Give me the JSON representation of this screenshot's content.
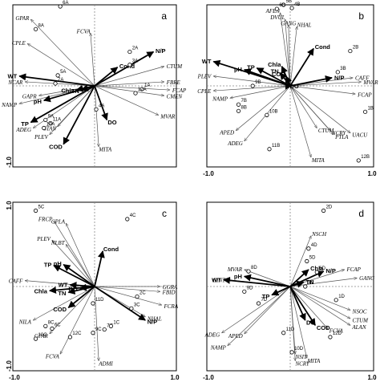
{
  "chart_data": [
    {
      "type": "scatter",
      "panel_label": "a",
      "xlim": [
        -1.0,
        1.0
      ],
      "ylim": [
        -1.0,
        1.0
      ],
      "show_xticks": false,
      "show_yticks": true,
      "ytick_top": "",
      "ytick_bottom": "-1.0",
      "xtick_left": "",
      "xtick_right": "",
      "environment": [
        {
          "name": "N/P",
          "x": 0.72,
          "y": 0.42
        },
        {
          "name": "Cond",
          "x": 0.28,
          "y": 0.23
        },
        {
          "name": "WT",
          "x": -0.92,
          "y": 0.12
        },
        {
          "name": "pH",
          "x": -0.62,
          "y": -0.18
        },
        {
          "name": "TP",
          "x": -0.78,
          "y": -0.45
        },
        {
          "name": "COD",
          "x": -0.38,
          "y": -0.72
        },
        {
          "name": "Chla",
          "x": -0.22,
          "y": -0.05
        },
        {
          "name": "TN",
          "x": -0.16,
          "y": -0.05
        },
        {
          "name": "DO",
          "x": 0.15,
          "y": -0.42
        }
      ],
      "species": [
        {
          "name": "GPAR",
          "x": -0.78,
          "y": 0.82
        },
        {
          "name": "FCVA",
          "x": -0.05,
          "y": 0.65
        },
        {
          "name": "CPLE",
          "x": -0.82,
          "y": 0.52
        },
        {
          "name": "CTUM",
          "x": 0.85,
          "y": 0.24
        },
        {
          "name": "NCAR",
          "x": -0.85,
          "y": 0.05
        },
        {
          "name": "FBRE",
          "x": 0.85,
          "y": 0.05
        },
        {
          "name": "FCAP",
          "x": 0.92,
          "y": -0.05
        },
        {
          "name": "CMEN",
          "x": 0.85,
          "y": -0.12
        },
        {
          "name": "NAMP",
          "x": -0.92,
          "y": -0.22
        },
        {
          "name": "GAPR",
          "x": -0.68,
          "y": -0.12
        },
        {
          "name": "MVAR",
          "x": 0.78,
          "y": -0.36
        },
        {
          "name": "ADEG",
          "x": -0.75,
          "y": -0.52
        },
        {
          "name": "PLEV",
          "x": -0.55,
          "y": -0.6
        },
        {
          "name": "STAN",
          "x": -0.45,
          "y": -0.5
        },
        {
          "name": "MITA",
          "x": 0.05,
          "y": -0.75
        }
      ],
      "sites": [
        {
          "name": "6A",
          "x": -0.42,
          "y": 0.98
        },
        {
          "name": "8A",
          "x": -0.72,
          "y": 0.7
        },
        {
          "name": "2A",
          "x": 0.43,
          "y": 0.42
        },
        {
          "name": "3A",
          "x": 0.43,
          "y": 0.26
        },
        {
          "name": "5A",
          "x": -0.45,
          "y": 0.13
        },
        {
          "name": "7A",
          "x": -0.48,
          "y": 0.03
        },
        {
          "name": "1A",
          "x": 0.58,
          "y": -0.04
        },
        {
          "name": "12A",
          "x": 0.5,
          "y": -0.09
        },
        {
          "name": "4A",
          "x": 0.02,
          "y": -0.29
        },
        {
          "name": "9A",
          "x": -0.6,
          "y": -0.42
        },
        {
          "name": "11A",
          "x": -0.54,
          "y": -0.46
        },
        {
          "name": "10A",
          "x": -0.62,
          "y": -0.52
        }
      ]
    },
    {
      "type": "scatter",
      "panel_label": "b",
      "xlim": [
        -1.0,
        1.0
      ],
      "ylim": [
        -1.0,
        1.0
      ],
      "show_xticks": true,
      "show_yticks": false,
      "ytick_top": "",
      "ytick_bottom": "",
      "xtick_left": "-1.0",
      "xtick_right": "1.0",
      "environment": [
        {
          "name": "Cond",
          "x": 0.28,
          "y": 0.46
        },
        {
          "name": "WT",
          "x": -0.92,
          "y": 0.3
        },
        {
          "name": "pH",
          "x": -0.55,
          "y": 0.2
        },
        {
          "name": "TP",
          "x": -0.4,
          "y": 0.22
        },
        {
          "name": "Chla",
          "x": -0.1,
          "y": 0.24
        },
        {
          "name": "TN",
          "x": -0.12,
          "y": 0.16
        },
        {
          "name": "COD",
          "x": -0.05,
          "y": 0.12
        },
        {
          "name": "N/P",
          "x": 0.5,
          "y": 0.1
        },
        {
          "name": "DO",
          "x": 0.02,
          "y": 0.0
        }
      ],
      "species": [
        {
          "name": "AFEN",
          "x": -0.12,
          "y": 0.9
        },
        {
          "name": "DVUL",
          "x": -0.06,
          "y": 0.82
        },
        {
          "name": "GANG",
          "x": -0.02,
          "y": 0.75
        },
        {
          "name": "NHAL",
          "x": 0.08,
          "y": 0.73
        },
        {
          "name": "PLEV",
          "x": -0.92,
          "y": 0.12
        },
        {
          "name": "CPLE",
          "x": -0.92,
          "y": -0.06
        },
        {
          "name": "CAFF",
          "x": 0.75,
          "y": 0.1
        },
        {
          "name": "MVAR",
          "x": 0.85,
          "y": 0.05
        },
        {
          "name": "FCAP",
          "x": 0.78,
          "y": -0.1
        },
        {
          "name": "NAMP",
          "x": -0.72,
          "y": -0.15
        },
        {
          "name": "APED",
          "x": -0.65,
          "y": -0.55
        },
        {
          "name": "ADEG",
          "x": -0.55,
          "y": -0.68
        },
        {
          "name": "CTUM",
          "x": 0.32,
          "y": -0.52
        },
        {
          "name": "NCRY",
          "x": 0.48,
          "y": -0.55
        },
        {
          "name": "PTLA",
          "x": 0.52,
          "y": -0.6
        },
        {
          "name": "UACU",
          "x": 0.72,
          "y": -0.58
        },
        {
          "name": "MITA",
          "x": 0.25,
          "y": -0.88
        }
      ],
      "sites": [
        {
          "name": "5B",
          "x": -0.08,
          "y": 1.0
        },
        {
          "name": "6B",
          "x": -0.16,
          "y": 0.95
        },
        {
          "name": "4B",
          "x": 0.02,
          "y": 0.96
        },
        {
          "name": "2B",
          "x": 0.72,
          "y": 0.43
        },
        {
          "name": "3B",
          "x": 0.57,
          "y": 0.17
        },
        {
          "name": "9B",
          "x": -0.45,
          "y": 0.0
        },
        {
          "name": "7B",
          "x": -0.62,
          "y": -0.23
        },
        {
          "name": "8B",
          "x": -0.62,
          "y": -0.31
        },
        {
          "name": "10B",
          "x": -0.28,
          "y": -0.36
        },
        {
          "name": "1B",
          "x": 0.9,
          "y": -0.32
        },
        {
          "name": "11B",
          "x": -0.25,
          "y": -0.78
        },
        {
          "name": "12B",
          "x": 0.82,
          "y": -0.92
        }
      ]
    },
    {
      "type": "scatter",
      "panel_label": "c",
      "xlim": [
        -1.0,
        1.0
      ],
      "ylim": [
        -1.0,
        1.0
      ],
      "show_xticks": true,
      "show_yticks": true,
      "ytick_top": "1.0",
      "ytick_bottom": "-1.0",
      "xtick_left": "-1.0",
      "xtick_right": "1.0",
      "environment": [
        {
          "name": "pH",
          "x": -0.38,
          "y": 0.26
        },
        {
          "name": "TP",
          "x": -0.5,
          "y": 0.25
        },
        {
          "name": "WT",
          "x": -0.3,
          "y": 0.02
        },
        {
          "name": "Chla",
          "x": -0.55,
          "y": -0.05
        },
        {
          "name": "TN",
          "x": -0.32,
          "y": -0.07
        },
        {
          "name": "DO",
          "x": -0.18,
          "y": -0.02
        },
        {
          "name": "COD",
          "x": -0.32,
          "y": -0.25
        },
        {
          "name": "Cond",
          "x": 0.1,
          "y": 0.42
        },
        {
          "name": "N/P",
          "x": 0.62,
          "y": -0.4
        }
      ],
      "species": [
        {
          "name": "FRCP",
          "x": -0.5,
          "y": 0.78
        },
        {
          "name": "CPLA",
          "x": -0.35,
          "y": 0.75
        },
        {
          "name": "PLEV",
          "x": -0.52,
          "y": 0.55
        },
        {
          "name": "NLBT",
          "x": -0.35,
          "y": 0.5
        },
        {
          "name": "CAFF",
          "x": -0.85,
          "y": 0.07
        },
        {
          "name": "GGRA",
          "x": 0.8,
          "y": 0.0
        },
        {
          "name": "FBID",
          "x": 0.8,
          "y": -0.06
        },
        {
          "name": "FCRA",
          "x": 0.82,
          "y": -0.22
        },
        {
          "name": "NHAL",
          "x": 0.62,
          "y": -0.36
        },
        {
          "name": "NILA",
          "x": -0.75,
          "y": -0.4
        },
        {
          "name": "GPAR",
          "x": -0.55,
          "y": -0.56
        },
        {
          "name": "FCVA",
          "x": -0.42,
          "y": -0.8
        },
        {
          "name": "ADMI",
          "x": 0.05,
          "y": -0.88
        }
      ],
      "sites": [
        {
          "name": "5C",
          "x": -0.72,
          "y": 0.9
        },
        {
          "name": "4C",
          "x": 0.4,
          "y": 0.8
        },
        {
          "name": "2C",
          "x": 0.52,
          "y": -0.12
        },
        {
          "name": "3C",
          "x": 0.45,
          "y": -0.26
        },
        {
          "name": "11D",
          "x": -0.02,
          "y": -0.2
        },
        {
          "name": "8C",
          "x": -0.6,
          "y": -0.47
        },
        {
          "name": "6C",
          "x": -0.52,
          "y": -0.5
        },
        {
          "name": "7C",
          "x": 0.12,
          "y": -0.51
        },
        {
          "name": "9C",
          "x": -0.02,
          "y": -0.55
        },
        {
          "name": "1C",
          "x": 0.2,
          "y": -0.47
        },
        {
          "name": "10C",
          "x": -0.72,
          "y": -0.62
        },
        {
          "name": "12C",
          "x": -0.3,
          "y": -0.6
        }
      ]
    },
    {
      "type": "scatter",
      "panel_label": "d",
      "xlim": [
        -1.0,
        1.0
      ],
      "ylim": [
        -1.0,
        1.0
      ],
      "show_xticks": true,
      "show_yticks": false,
      "ytick_top": "",
      "ytick_bottom": "",
      "xtick_left": "-1.0",
      "xtick_right": "1.0",
      "environment": [
        {
          "name": "N/P",
          "x": 0.4,
          "y": 0.18
        },
        {
          "name": "Chla",
          "x": 0.22,
          "y": 0.2
        },
        {
          "name": "TN",
          "x": 0.16,
          "y": 0.05
        },
        {
          "name": "pH",
          "x": -0.55,
          "y": 0.12
        },
        {
          "name": "WT",
          "x": -0.8,
          "y": 0.08
        },
        {
          "name": "TP",
          "x": -0.22,
          "y": -0.1
        },
        {
          "name": "DO",
          "x": 0.18,
          "y": -0.4
        },
        {
          "name": "COD",
          "x": 0.3,
          "y": -0.46
        }
      ],
      "species": [
        {
          "name": "NSCH",
          "x": 0.25,
          "y": 0.6
        },
        {
          "name": "FCAP",
          "x": 0.65,
          "y": 0.2
        },
        {
          "name": "GANG",
          "x": 0.8,
          "y": 0.1
        },
        {
          "name": "MVAR",
          "x": -0.55,
          "y": 0.2
        },
        {
          "name": "GINT",
          "x": -0.75,
          "y": 0.08
        },
        {
          "name": "NSOC",
          "x": 0.72,
          "y": -0.28
        },
        {
          "name": "CTUM",
          "x": 0.72,
          "y": -0.38
        },
        {
          "name": "ALAN",
          "x": 0.72,
          "y": -0.46
        },
        {
          "name": "FCVA",
          "x": 0.45,
          "y": -0.5
        },
        {
          "name": "ADEG",
          "x": -0.82,
          "y": -0.55
        },
        {
          "name": "APED",
          "x": -0.55,
          "y": -0.56
        },
        {
          "name": "NAMP",
          "x": -0.75,
          "y": -0.7
        },
        {
          "name": "NSIT",
          "x": 0.06,
          "y": -0.8
        },
        {
          "name": "NCRY",
          "x": 0.06,
          "y": -0.88
        },
        {
          "name": "MITA",
          "x": 0.2,
          "y": -0.85
        }
      ],
      "sites": [
        {
          "name": "2D",
          "x": 0.4,
          "y": 0.9
        },
        {
          "name": "4D",
          "x": 0.22,
          "y": 0.45
        },
        {
          "name": "5D",
          "x": 0.2,
          "y": 0.3
        },
        {
          "name": "6D",
          "x": 0.32,
          "y": 0.17
        },
        {
          "name": "8D",
          "x": -0.5,
          "y": 0.18
        },
        {
          "name": "3D",
          "x": 0.18,
          "y": 0.0
        },
        {
          "name": "9D",
          "x": -0.55,
          "y": -0.06
        },
        {
          "name": "7D",
          "x": -0.38,
          "y": -0.2
        },
        {
          "name": "1D",
          "x": 0.55,
          "y": -0.16
        },
        {
          "name": "11D",
          "x": -0.08,
          "y": -0.55
        },
        {
          "name": "12D",
          "x": 0.48,
          "y": -0.6
        },
        {
          "name": "10D",
          "x": 0.02,
          "y": -0.78
        }
      ]
    }
  ]
}
